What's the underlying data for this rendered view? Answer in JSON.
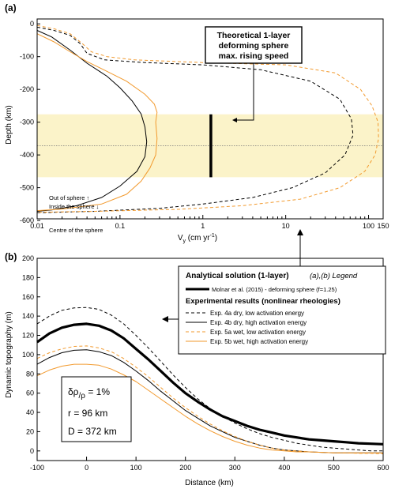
{
  "panel_a": {
    "label": "(a)",
    "xlabel_v": "V",
    "xlabel_sub": "y",
    "xlabel_unit": " (cm yr",
    "xlabel_exp": "-1",
    "xlabel_close": ")",
    "ylabel": "Depth (km)",
    "callout": [
      "Theoretical 1-layer",
      "deforming sphere",
      "max. rising speed"
    ],
    "out_label": "Out of sphere ↑",
    "in_label": "Inside the sphere ↓",
    "centre_label": "Centre of the sphere"
  },
  "panel_b": {
    "label": "(b)",
    "xlabel": "Distance (km)",
    "ylabel": "Dynamic topography (m)",
    "params": {
      "drho_a": "δρ",
      "drho_b": "/ρ",
      "drho_c": " = 1%",
      "r": "r  = 96 km",
      "D": "D = 372 km"
    }
  },
  "legend": {
    "analytical_title": "Analytical solution (1-layer)",
    "legend_tag": "(a),(b) Legend",
    "molnar": "Molnar et al. (2015) - deforming sphere (f=1.25)",
    "experimental_title": "Experimental results (nonlinear rheologies)",
    "items": [
      {
        "label": "Exp. 4a dry, low activation energy",
        "color": "#000000",
        "dash": true
      },
      {
        "label": "Exp. 4b dry, high activation energy",
        "color": "#000000",
        "dash": false
      },
      {
        "label": "Exp. 5a wet, low activation energy",
        "color": "#f29a2e",
        "dash": true
      },
      {
        "label": "Exp. 5b wet, high activation energy",
        "color": "#f29a2e",
        "dash": false
      }
    ]
  },
  "colors": {
    "orange": "#f29a2e",
    "black": "#000000",
    "sphere_band": "#fbf3c9"
  },
  "chart_data": [
    {
      "type": "line",
      "title": "",
      "xlabel": "Vy (cm yr-1)",
      "ylabel": "Depth (km)",
      "xscale": "log",
      "xlim": [
        0.01,
        150
      ],
      "ylim": [
        -600,
        0
      ],
      "xticks": [
        0.01,
        0.1,
        1,
        10,
        100,
        150
      ],
      "xtick_labels": [
        "0.01",
        "0.1",
        "1",
        "10",
        "100",
        "150"
      ],
      "yticks": [
        0,
        -100,
        -200,
        -300,
        -400,
        -500,
        -600
      ],
      "sphere_band_depth": [
        -276,
        -468
      ],
      "centre_depth": -372,
      "analytical_max_speed": {
        "x": 1.25,
        "y_top": -276,
        "y_bottom": -468
      },
      "series": [
        {
          "name": "Exp. 4a dry, low activation energy",
          "color": "#000000",
          "dash": true,
          "width": 1,
          "points": [
            [
              0.01,
              -10
            ],
            [
              0.016,
              -20
            ],
            [
              0.025,
              -35
            ],
            [
              0.033,
              -60
            ],
            [
              0.04,
              -90
            ],
            [
              0.065,
              -110
            ],
            [
              0.2,
              -118
            ],
            [
              1,
              -125
            ],
            [
              5,
              -140
            ],
            [
              20,
              -175
            ],
            [
              45,
              -230
            ],
            [
              62,
              -290
            ],
            [
              65,
              -340
            ],
            [
              52,
              -400
            ],
            [
              30,
              -455
            ],
            [
              12,
              -500
            ],
            [
              4,
              -530
            ],
            [
              1,
              -550
            ],
            [
              0.3,
              -563
            ],
            [
              0.05,
              -572
            ],
            [
              0.012,
              -576
            ],
            [
              0.01,
              -576
            ]
          ]
        },
        {
          "name": "Exp. 4b dry, high activation energy",
          "color": "#000000",
          "dash": false,
          "width": 1,
          "points": [
            [
              0.01,
              -20
            ],
            [
              0.015,
              -40
            ],
            [
              0.025,
              -80
            ],
            [
              0.04,
              -120
            ],
            [
              0.07,
              -160
            ],
            [
              0.1,
              -195
            ],
            [
              0.14,
              -235
            ],
            [
              0.18,
              -275
            ],
            [
              0.2,
              -315
            ],
            [
              0.21,
              -360
            ],
            [
              0.2,
              -405
            ],
            [
              0.16,
              -450
            ],
            [
              0.1,
              -495
            ],
            [
              0.06,
              -530
            ],
            [
              0.03,
              -555
            ],
            [
              0.015,
              -568
            ],
            [
              0.01,
              -572
            ]
          ]
        },
        {
          "name": "Exp. 5a wet, low activation energy",
          "color": "#f29a2e",
          "dash": true,
          "width": 1,
          "points": [
            [
              0.01,
              -5
            ],
            [
              0.016,
              -15
            ],
            [
              0.025,
              -30
            ],
            [
              0.035,
              -60
            ],
            [
              0.045,
              -85
            ],
            [
              0.07,
              -100
            ],
            [
              0.15,
              -110
            ],
            [
              1,
              -118
            ],
            [
              10,
              -125
            ],
            [
              40,
              -150
            ],
            [
              80,
              -200
            ],
            [
              110,
              -250
            ],
            [
              130,
              -300
            ],
            [
              132,
              -350
            ],
            [
              120,
              -400
            ],
            [
              90,
              -450
            ],
            [
              45,
              -500
            ],
            [
              15,
              -535
            ],
            [
              3,
              -555
            ],
            [
              0.5,
              -566
            ],
            [
              0.05,
              -572
            ],
            [
              0.01,
              -575
            ]
          ]
        },
        {
          "name": "Exp. 5b wet, high activation energy",
          "color": "#f29a2e",
          "dash": false,
          "width": 1,
          "points": [
            [
              0.01,
              -30
            ],
            [
              0.016,
              -55
            ],
            [
              0.025,
              -85
            ],
            [
              0.04,
              -115
            ],
            [
              0.07,
              -145
            ],
            [
              0.12,
              -175
            ],
            [
              0.2,
              -215
            ],
            [
              0.26,
              -245
            ],
            [
              0.28,
              -270
            ],
            [
              0.27,
              -300
            ],
            [
              0.28,
              -350
            ],
            [
              0.27,
              -400
            ],
            [
              0.23,
              -440
            ],
            [
              0.18,
              -480
            ],
            [
              0.12,
              -520
            ],
            [
              0.06,
              -550
            ],
            [
              0.02,
              -565
            ],
            [
              0.01,
              -570
            ]
          ]
        }
      ]
    },
    {
      "type": "line",
      "title": "",
      "xlabel": "Distance (km)",
      "ylabel": "Dynamic topography (m)",
      "xlim": [
        -100,
        600
      ],
      "ylim": [
        -10,
        200
      ],
      "xticks": [
        -100,
        0,
        100,
        200,
        300,
        400,
        500,
        600
      ],
      "yticks": [
        0,
        20,
        40,
        60,
        80,
        100,
        120,
        140,
        160,
        180,
        200
      ],
      "series": [
        {
          "name": "Molnar et al. (2015) - deforming sphere (f=1.25)",
          "color": "#000000",
          "dash": false,
          "width": 3.2,
          "points": [
            [
              -100,
              113
            ],
            [
              -75,
              122
            ],
            [
              -50,
              128
            ],
            [
              -25,
              131
            ],
            [
              0,
              132
            ],
            [
              25,
              130
            ],
            [
              50,
              125
            ],
            [
              75,
              117
            ],
            [
              100,
              106
            ],
            [
              125,
              95
            ],
            [
              150,
              83
            ],
            [
              175,
              71
            ],
            [
              200,
              60
            ],
            [
              225,
              51
            ],
            [
              250,
              43
            ],
            [
              275,
              36
            ],
            [
              300,
              31
            ],
            [
              325,
              26
            ],
            [
              350,
              22
            ],
            [
              375,
              19
            ],
            [
              400,
              16
            ],
            [
              425,
              14
            ],
            [
              450,
              12
            ],
            [
              475,
              11
            ],
            [
              500,
              10
            ],
            [
              525,
              9
            ],
            [
              550,
              8
            ],
            [
              575,
              7.5
            ],
            [
              600,
              7
            ]
          ]
        },
        {
          "name": "Exp. 4a dry, low activation energy",
          "color": "#000000",
          "dash": true,
          "width": 1,
          "points": [
            [
              -100,
              132
            ],
            [
              -75,
              140
            ],
            [
              -50,
              146
            ],
            [
              -25,
              148.5
            ],
            [
              0,
              149
            ],
            [
              25,
              147
            ],
            [
              50,
              141
            ],
            [
              75,
              132
            ],
            [
              100,
              120
            ],
            [
              125,
              107
            ],
            [
              150,
              93
            ],
            [
              175,
              79
            ],
            [
              200,
              66
            ],
            [
              225,
              54
            ],
            [
              250,
              44
            ],
            [
              275,
              36
            ],
            [
              300,
              29
            ],
            [
              325,
              23
            ],
            [
              350,
              18
            ],
            [
              375,
              14
            ],
            [
              400,
              11
            ],
            [
              425,
              8
            ],
            [
              450,
              6
            ],
            [
              475,
              4
            ],
            [
              500,
              3
            ],
            [
              525,
              2
            ],
            [
              550,
              1
            ],
            [
              575,
              0
            ],
            [
              600,
              0
            ]
          ]
        },
        {
          "name": "Exp. 4b dry, high activation energy",
          "color": "#000000",
          "dash": false,
          "width": 1,
          "points": [
            [
              -100,
              90
            ],
            [
              -75,
              97
            ],
            [
              -50,
              102
            ],
            [
              -25,
              104.5
            ],
            [
              0,
              105
            ],
            [
              25,
              103
            ],
            [
              50,
              99
            ],
            [
              75,
              92
            ],
            [
              100,
              83
            ],
            [
              125,
              73
            ],
            [
              150,
              62
            ],
            [
              175,
              52
            ],
            [
              200,
              42
            ],
            [
              225,
              34
            ],
            [
              250,
              26
            ],
            [
              275,
              20
            ],
            [
              300,
              14
            ],
            [
              325,
              10
            ],
            [
              350,
              6
            ],
            [
              375,
              3
            ],
            [
              400,
              1
            ],
            [
              425,
              0
            ],
            [
              450,
              -1
            ],
            [
              475,
              -1.5
            ],
            [
              500,
              -2
            ],
            [
              525,
              -2
            ],
            [
              550,
              -2
            ],
            [
              575,
              -2
            ],
            [
              600,
              -2
            ]
          ]
        },
        {
          "name": "Exp. 5a wet, low activation energy",
          "color": "#f29a2e",
          "dash": true,
          "width": 1,
          "points": [
            [
              -100,
              96
            ],
            [
              -75,
              102
            ],
            [
              -50,
              106
            ],
            [
              -25,
              108.5
            ],
            [
              0,
              109
            ],
            [
              25,
              107
            ],
            [
              50,
              103
            ],
            [
              75,
              96
            ],
            [
              100,
              87
            ],
            [
              125,
              77
            ],
            [
              150,
              66
            ],
            [
              175,
              55
            ],
            [
              200,
              45
            ],
            [
              225,
              36
            ],
            [
              250,
              28
            ],
            [
              275,
              21
            ],
            [
              300,
              15
            ],
            [
              325,
              10
            ],
            [
              350,
              6
            ],
            [
              375,
              3
            ],
            [
              400,
              1
            ],
            [
              425,
              0
            ],
            [
              450,
              -1
            ],
            [
              475,
              -1.5
            ],
            [
              500,
              -2
            ],
            [
              525,
              -2
            ],
            [
              550,
              -2.5
            ],
            [
              575,
              -2.5
            ],
            [
              600,
              -3
            ]
          ]
        },
        {
          "name": "Exp. 5b wet, high activation energy",
          "color": "#f29a2e",
          "dash": false,
          "width": 1,
          "points": [
            [
              -100,
              78
            ],
            [
              -75,
              84
            ],
            [
              -50,
              88
            ],
            [
              -25,
              90
            ],
            [
              0,
              90
            ],
            [
              25,
              89
            ],
            [
              50,
              85
            ],
            [
              75,
              79
            ],
            [
              100,
              72
            ],
            [
              125,
              63
            ],
            [
              150,
              54
            ],
            [
              175,
              45
            ],
            [
              200,
              36
            ],
            [
              225,
              28
            ],
            [
              250,
              21
            ],
            [
              275,
              15
            ],
            [
              300,
              10
            ],
            [
              325,
              6
            ],
            [
              350,
              3
            ],
            [
              375,
              1
            ],
            [
              400,
              0
            ],
            [
              425,
              -1
            ],
            [
              450,
              -1
            ],
            [
              475,
              -1.5
            ],
            [
              500,
              -2
            ],
            [
              525,
              -2
            ],
            [
              550,
              -2
            ],
            [
              575,
              -2
            ],
            [
              600,
              -2
            ]
          ]
        }
      ]
    }
  ]
}
